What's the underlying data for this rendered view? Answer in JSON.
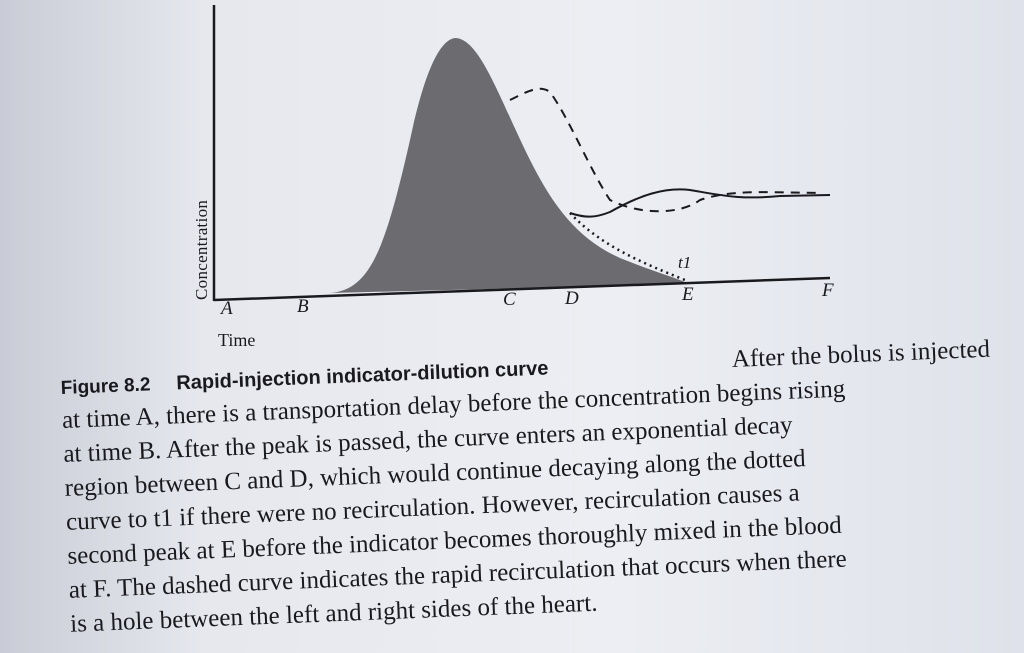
{
  "figure": {
    "y_axis_label": "Concentration",
    "x_axis_label": "Time",
    "point_labels": [
      "A",
      "B",
      "C",
      "D",
      "E",
      "F"
    ],
    "t1_label": "t1",
    "fill_color": "#6b6b70"
  },
  "caption": {
    "figure_number": "Figure 8.2",
    "figure_title": "Rapid-injection indicator-dilution curve",
    "lines": [
      "After the bolus is injected",
      "at time A, there is a transportation delay before the concentration begins rising",
      "at time B. After the peak is passed, the curve enters an exponential decay",
      "region between C and D, which would continue decaying along the dotted",
      "curve to t1 if there were no recirculation. However, recirculation causes a",
      "second peak at E before the indicator becomes thoroughly mixed in the blood",
      "at F. The dashed curve indicates the rapid recirculation that occurs when there",
      "is a hole between the left and right sides of the heart."
    ]
  }
}
